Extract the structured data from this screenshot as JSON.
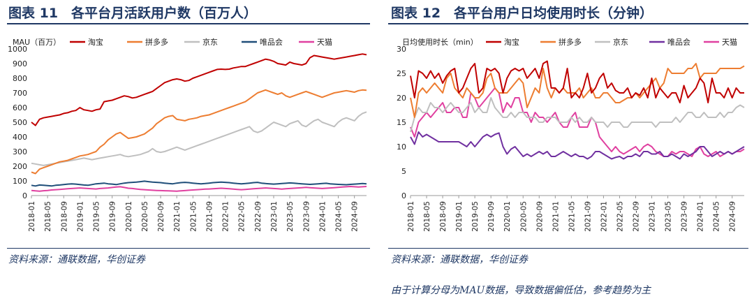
{
  "left_panel": {
    "figure_title": "图表 11　各平台月活跃用户数（百万人）",
    "source": "资料来源：通联数据，华创证券"
  },
  "right_panel": {
    "figure_title": "图表 12　各平台用户日均使用时长（分钟）",
    "source": "资料来源：通联数据，华创证券",
    "footnote": "由于计算分母为MAU数据，导致数据偏低估，参考趋势为主"
  },
  "series_colors": {
    "淘宝": "#c00000",
    "拼多多": "#ed7d31",
    "京东": "#bfbfbf",
    "唯品会": "#1f4e79",
    "唯品会_time": "#7030a0",
    "天猫": "#e040a0"
  },
  "chart_data": [
    {
      "type": "line",
      "title": "",
      "ylabel": "MAU（百万）",
      "xlabel": "",
      "ylim": [
        0,
        1000
      ],
      "yticks": [
        0,
        100,
        200,
        300,
        400,
        500,
        600,
        700,
        800,
        900,
        1000
      ],
      "xtick_labels": [
        "2018-01",
        "2018-05",
        "2018-09",
        "2019-01",
        "2019-05",
        "2019-09",
        "2020-01",
        "2020-05",
        "2020-09",
        "2021-01",
        "2021-05",
        "2021-09",
        "2022-01",
        "2022-05",
        "2022-09",
        "2023-01",
        "2023-05",
        "2023-09",
        "2024-01",
        "2024-05",
        "2024-09"
      ],
      "x_start": "2018-01",
      "x_end": "2024-12",
      "legend_position": "top",
      "grid": false,
      "series": [
        {
          "name": "淘宝",
          "color": "#c00000",
          "values": [
            500,
            478,
            520,
            530,
            535,
            540,
            545,
            550,
            560,
            565,
            575,
            580,
            600,
            585,
            580,
            575,
            585,
            590,
            640,
            645,
            650,
            660,
            670,
            680,
            675,
            665,
            670,
            680,
            690,
            700,
            710,
            730,
            750,
            770,
            780,
            790,
            795,
            790,
            780,
            785,
            800,
            810,
            820,
            830,
            840,
            850,
            860,
            862,
            860,
            862,
            870,
            875,
            880,
            880,
            890,
            900,
            910,
            920,
            930,
            925,
            915,
            900,
            895,
            890,
            910,
            900,
            895,
            890,
            900,
            940,
            955,
            950,
            945,
            940,
            935,
            930,
            935,
            940,
            945,
            950,
            955,
            960,
            965,
            960
          ]
        },
        {
          "name": "拼多多",
          "color": "#ed7d31",
          "values": [
            160,
            150,
            180,
            190,
            200,
            210,
            220,
            230,
            235,
            240,
            250,
            260,
            270,
            275,
            280,
            290,
            300,
            330,
            350,
            380,
            400,
            420,
            430,
            410,
            390,
            395,
            400,
            410,
            420,
            440,
            460,
            490,
            510,
            530,
            540,
            545,
            520,
            515,
            510,
            520,
            525,
            530,
            540,
            545,
            550,
            560,
            570,
            580,
            590,
            600,
            610,
            620,
            630,
            640,
            660,
            680,
            700,
            710,
            720,
            710,
            700,
            690,
            700,
            680,
            670,
            680,
            690,
            700,
            710,
            700,
            690,
            680,
            670,
            680,
            690,
            700,
            705,
            710,
            715,
            710,
            705,
            715,
            720,
            718
          ]
        },
        {
          "name": "京东",
          "color": "#bfbfbf",
          "values": [
            220,
            215,
            210,
            205,
            210,
            215,
            220,
            225,
            230,
            235,
            240,
            245,
            250,
            255,
            250,
            245,
            250,
            255,
            260,
            265,
            270,
            275,
            280,
            270,
            265,
            270,
            275,
            280,
            290,
            300,
            320,
            300,
            295,
            300,
            310,
            320,
            330,
            320,
            310,
            320,
            330,
            340,
            350,
            360,
            370,
            380,
            390,
            400,
            410,
            420,
            430,
            440,
            450,
            460,
            470,
            440,
            430,
            440,
            460,
            480,
            500,
            490,
            480,
            470,
            490,
            500,
            510,
            480,
            470,
            490,
            510,
            520,
            500,
            490,
            480,
            470,
            500,
            520,
            530,
            520,
            510,
            540,
            560,
            570
          ]
        },
        {
          "name": "唯品会",
          "color": "#1f4e79",
          "values": [
            70,
            65,
            72,
            70,
            68,
            65,
            70,
            72,
            75,
            78,
            80,
            78,
            75,
            72,
            70,
            75,
            80,
            82,
            85,
            80,
            78,
            75,
            80,
            85,
            88,
            90,
            92,
            95,
            98,
            95,
            92,
            90,
            88,
            85,
            82,
            80,
            85,
            88,
            90,
            88,
            85,
            82,
            80,
            82,
            85,
            88,
            90,
            92,
            90,
            88,
            85,
            82,
            80,
            82,
            85,
            88,
            90,
            85,
            82,
            80,
            78,
            80,
            82,
            84,
            86,
            85,
            82,
            80,
            78,
            76,
            78,
            80,
            82,
            84,
            80,
            78,
            76,
            75,
            74,
            76,
            78,
            80,
            82,
            80
          ]
        },
        {
          "name": "天猫",
          "color": "#e040a0",
          "values": [
            35,
            32,
            30,
            33,
            35,
            38,
            40,
            42,
            44,
            46,
            48,
            50,
            52,
            50,
            48,
            46,
            45,
            48,
            50,
            52,
            55,
            58,
            60,
            55,
            50,
            48,
            45,
            42,
            40,
            38,
            36,
            35,
            34,
            33,
            32,
            31,
            30,
            32,
            34,
            36,
            38,
            40,
            42,
            44,
            45,
            46,
            48,
            50,
            48,
            46,
            44,
            42,
            40,
            42,
            44,
            46,
            48,
            50,
            52,
            50,
            48,
            46,
            44,
            46,
            48,
            50,
            52,
            54,
            56,
            54,
            52,
            50,
            48,
            50,
            52,
            54,
            56,
            58,
            60,
            62,
            60,
            58,
            60,
            62
          ]
        }
      ]
    },
    {
      "type": "line",
      "title": "",
      "ylabel": "日均使用时长（min）",
      "xlabel": "",
      "ylim": [
        0,
        30
      ],
      "yticks": [
        0,
        5,
        10,
        15,
        20,
        25,
        30
      ],
      "xtick_labels": [
        "2018-01",
        "2018-05",
        "2018-09",
        "2019-01",
        "2019-05",
        "2019-09",
        "2020-01",
        "2020-05",
        "2020-09",
        "2021-01",
        "2021-05",
        "2021-09",
        "2022-01",
        "2022-05",
        "2022-09",
        "2023-01",
        "2023-05",
        "2023-09",
        "2024-01",
        "2024-05",
        "2024-09"
      ],
      "x_start": "2018-01",
      "x_end": "2024-12",
      "legend_position": "top",
      "grid": false,
      "series": [
        {
          "name": "淘宝",
          "color": "#c00000",
          "values": [
            24.5,
            20,
            25.5,
            25,
            24,
            25.5,
            24,
            25,
            23,
            24.5,
            25.5,
            26,
            21,
            22,
            24,
            26,
            27,
            21,
            22,
            26,
            25.5,
            26,
            25,
            21,
            24,
            25.5,
            26,
            25.5,
            26,
            24,
            25,
            26,
            24,
            27,
            27.5,
            22,
            22,
            21,
            22,
            26,
            20,
            21,
            20,
            22,
            25,
            21,
            22,
            24,
            25,
            22,
            23,
            21.5,
            21,
            21,
            22,
            20,
            21,
            20.5,
            22,
            20,
            24,
            20,
            22,
            21,
            20,
            21,
            21,
            19,
            22.5,
            20,
            21,
            22,
            24,
            23,
            19,
            24,
            21,
            21,
            20,
            22,
            20,
            22,
            21,
            21
          ]
        },
        {
          "name": "拼多多",
          "color": "#ed7d31",
          "values": [
            20,
            16,
            21,
            22,
            21,
            22,
            23,
            22,
            21,
            24,
            25,
            22,
            21,
            20,
            22,
            21,
            20,
            20,
            21,
            24,
            25,
            22,
            21,
            21,
            21,
            22,
            23,
            24,
            23,
            18,
            20,
            22,
            21,
            26,
            22,
            20,
            22,
            21,
            22,
            21,
            21,
            21,
            22,
            20,
            21,
            22,
            20,
            20,
            21,
            21,
            20,
            19,
            19,
            19.5,
            20,
            20,
            21,
            20,
            21,
            22,
            23,
            24,
            22,
            23,
            26,
            25,
            25,
            25,
            25,
            26,
            26,
            27,
            24,
            25,
            25,
            25,
            25,
            26,
            26,
            26,
            26,
            26,
            26,
            26.5
          ]
        },
        {
          "name": "京东",
          "color": "#bfbfbf",
          "values": [
            13,
            16,
            18,
            17,
            17,
            19,
            18,
            18,
            17,
            18,
            19,
            18,
            17,
            17,
            18,
            19,
            17,
            18,
            17,
            17,
            20,
            18,
            17,
            16,
            16,
            17,
            16,
            17,
            17,
            16,
            16,
            16,
            15,
            15,
            16,
            16,
            16,
            15,
            15,
            15,
            16,
            15,
            16,
            15,
            15,
            16,
            15,
            15,
            15,
            14,
            15,
            15,
            15,
            14,
            14,
            15,
            15,
            15,
            15,
            15,
            15,
            14,
            15,
            15,
            15,
            15,
            16,
            15,
            16,
            17,
            17,
            16,
            16,
            17,
            16,
            16,
            16,
            17,
            16,
            17,
            17,
            18,
            18.5,
            18
          ]
        },
        {
          "name": "唯品会",
          "color": "#7030a0",
          "values": [
            12,
            10.5,
            13,
            12,
            12.5,
            12,
            11.5,
            11,
            11,
            11,
            11,
            11,
            11,
            10.5,
            10,
            11,
            10,
            11,
            12,
            12.5,
            12,
            12.5,
            12.8,
            10,
            8.5,
            9.5,
            10,
            9,
            8,
            8.5,
            8,
            8.5,
            9,
            8.5,
            9,
            8,
            8,
            8.5,
            9,
            8.5,
            8,
            8.5,
            8,
            8,
            7.5,
            8,
            9,
            9,
            8.5,
            8,
            7.5,
            7.8,
            8,
            7.5,
            8,
            8,
            8.5,
            8,
            9,
            9,
            8.5,
            8.5,
            9,
            8,
            8,
            8.5,
            8,
            7.5,
            8.5,
            8,
            8.5,
            9,
            10,
            10,
            9,
            8,
            8.5,
            9,
            8.5,
            9,
            8.5,
            9,
            9.5,
            10
          ]
        },
        {
          "name": "天猫",
          "color": "#e040a0",
          "values": [
            14,
            12,
            15,
            16,
            17,
            16,
            17,
            18,
            19,
            17,
            17,
            18,
            18,
            16,
            16,
            21,
            20,
            18,
            19,
            20,
            21,
            22,
            21,
            17,
            19,
            18,
            20,
            20,
            17,
            17,
            15,
            17,
            16,
            16,
            15,
            16,
            17,
            15,
            14,
            14,
            16,
            17,
            14,
            14,
            14,
            16,
            15,
            12,
            11,
            10,
            9,
            10,
            9,
            8.5,
            9,
            9.5,
            10,
            9,
            10,
            10.5,
            10,
            9,
            8.5,
            8,
            8,
            9,
            8.5,
            9,
            9,
            8.5,
            8,
            9.5,
            10,
            8.5,
            8,
            8.5,
            9,
            8,
            8.5,
            9,
            8.5,
            9,
            9,
            9.5
          ]
        }
      ]
    }
  ]
}
